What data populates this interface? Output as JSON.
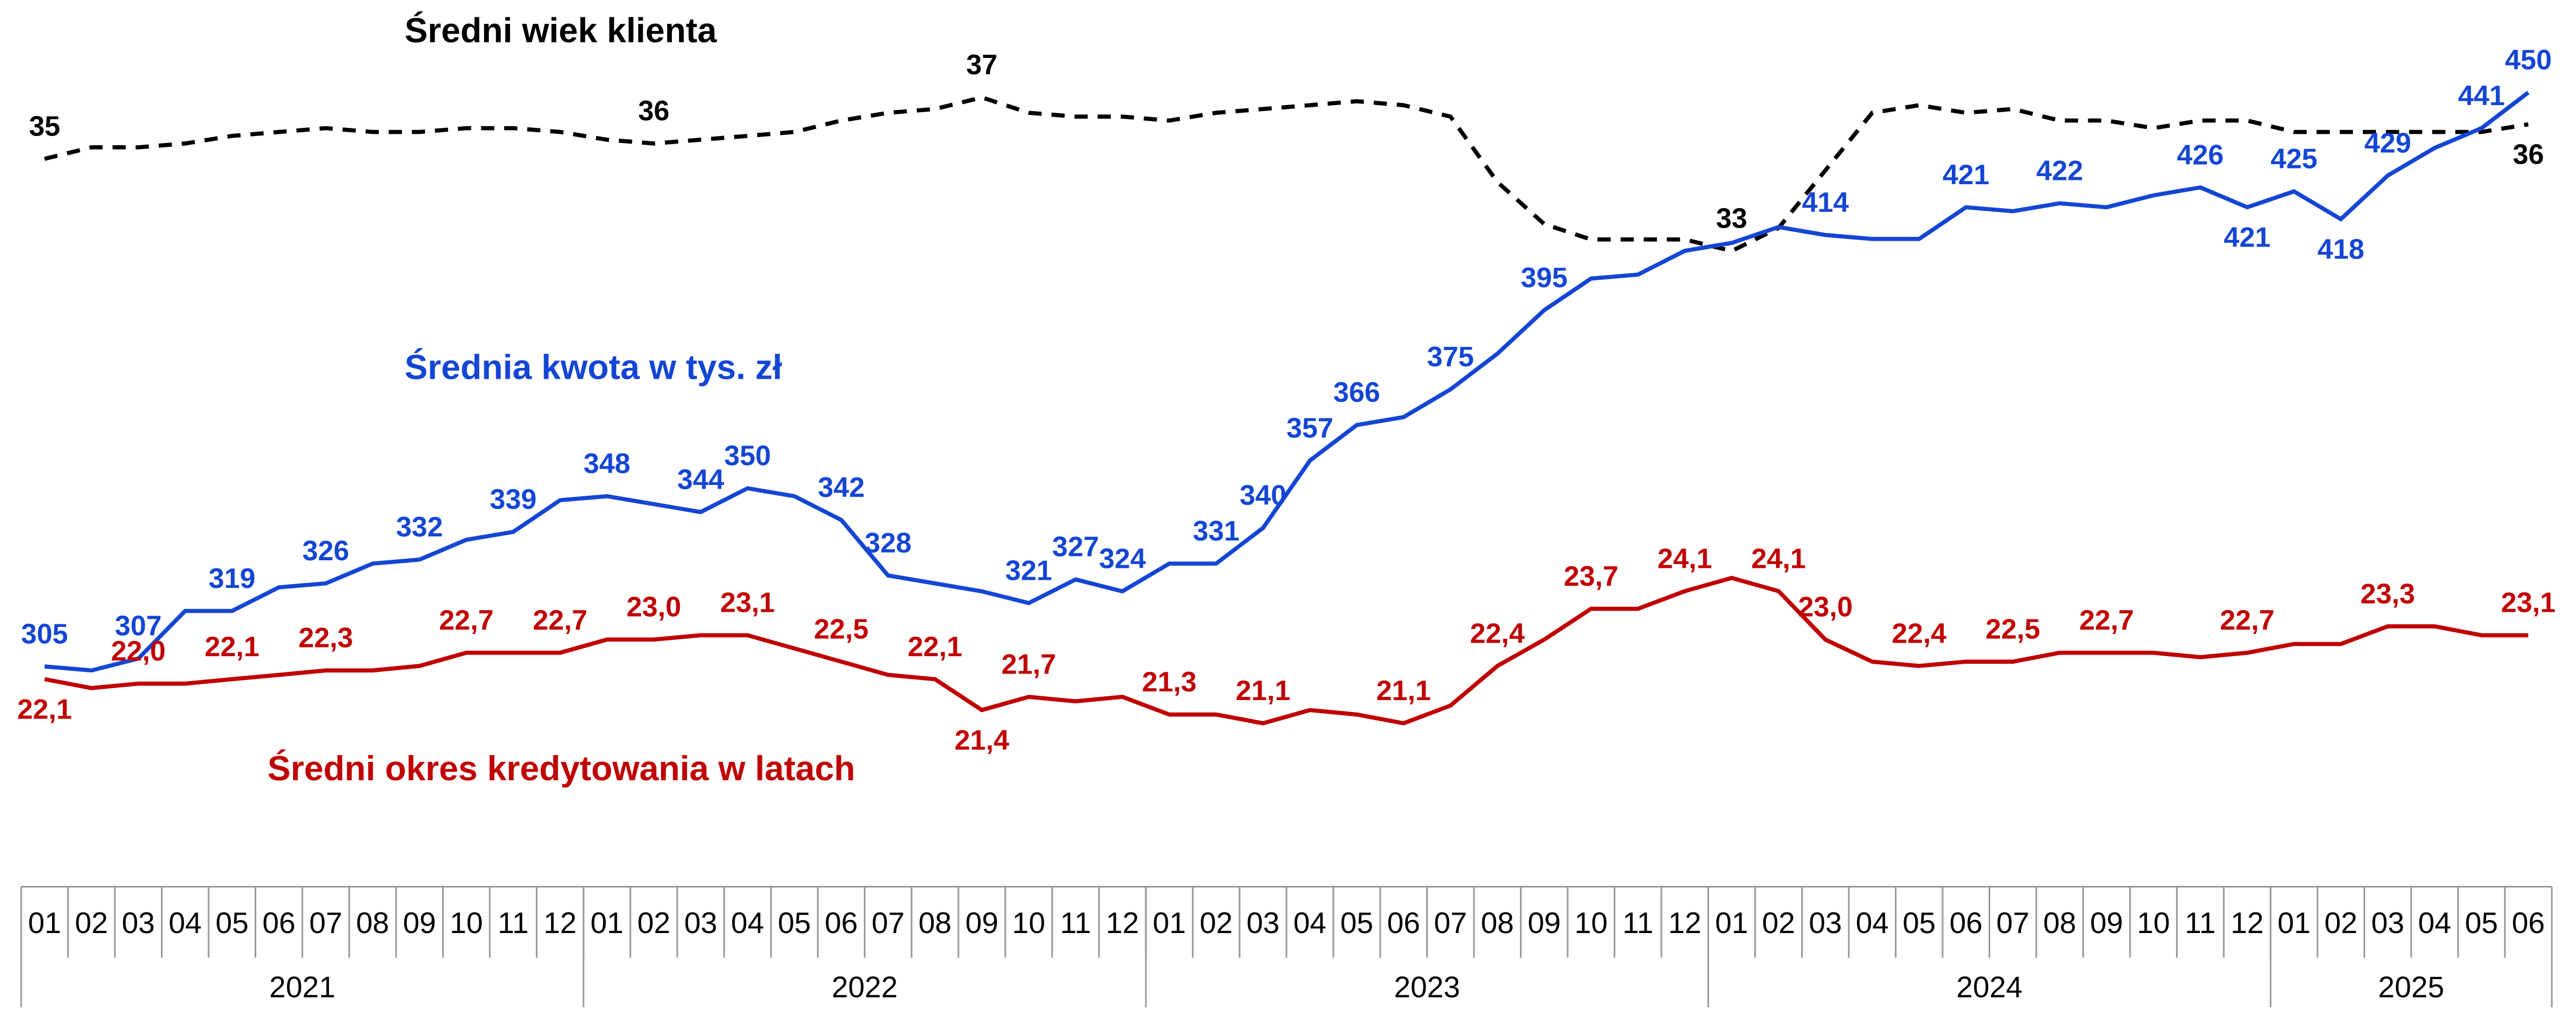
{
  "chart_data": {
    "type": "line",
    "categories": [
      "01",
      "02",
      "03",
      "04",
      "05",
      "06",
      "07",
      "08",
      "09",
      "10",
      "11",
      "12",
      "01",
      "02",
      "03",
      "04",
      "05",
      "06",
      "07",
      "08",
      "09",
      "10",
      "11",
      "12",
      "01",
      "02",
      "03",
      "04",
      "05",
      "06",
      "07",
      "08",
      "09",
      "10",
      "11",
      "12",
      "01",
      "02",
      "03",
      "04",
      "05",
      "06",
      "07",
      "08",
      "09",
      "10",
      "11",
      "12",
      "01",
      "02",
      "03",
      "04",
      "05",
      "06"
    ],
    "years": [
      "2021",
      "2022",
      "2023",
      "2024",
      "2025"
    ],
    "series": [
      {
        "name": "Średni wiek klienta",
        "color": "#000000",
        "dash": true,
        "values": [
          35.4,
          35.7,
          35.7,
          35.8,
          36.0,
          36.1,
          36.2,
          36.1,
          36.1,
          36.2,
          36.2,
          36.1,
          35.9,
          35.8,
          35.9,
          36.0,
          36.1,
          36.4,
          36.6,
          36.7,
          37.0,
          36.6,
          36.5,
          36.5,
          36.4,
          36.6,
          36.7,
          36.8,
          36.9,
          36.8,
          36.5,
          34.8,
          33.7,
          33.3,
          33.3,
          33.3,
          33.0,
          33.6,
          35.1,
          36.6,
          36.8,
          36.6,
          36.7,
          36.4,
          36.4,
          36.2,
          36.4,
          36.4,
          36.1,
          36.1,
          36.1,
          36.1,
          36.1,
          36.3
        ],
        "value_labels": [
          "35",
          null,
          null,
          null,
          null,
          null,
          null,
          null,
          null,
          null,
          null,
          null,
          null,
          "36",
          null,
          null,
          null,
          null,
          null,
          null,
          "37",
          null,
          null,
          null,
          null,
          null,
          null,
          null,
          null,
          null,
          null,
          null,
          null,
          null,
          null,
          null,
          "33",
          null,
          null,
          null,
          null,
          null,
          null,
          null,
          null,
          null,
          null,
          null,
          null,
          null,
          null,
          null,
          null,
          "36"
        ]
      },
      {
        "name": "Średnia kwota w tys. zł",
        "color": "#1446d4",
        "dash": false,
        "values": [
          305,
          304,
          307,
          319,
          319,
          325,
          326,
          331,
          332,
          337,
          339,
          347,
          348,
          346,
          344,
          350,
          348,
          342,
          328,
          326,
          324,
          321,
          327,
          324,
          331,
          331,
          340,
          357,
          366,
          368,
          375,
          384,
          395,
          403,
          404,
          410,
          412,
          416,
          414,
          413,
          413,
          421,
          420,
          422,
          421,
          424,
          426,
          421,
          425,
          418,
          429,
          436,
          441,
          450
        ],
        "value_labels": [
          "305",
          null,
          "307",
          null,
          "319",
          null,
          "326",
          null,
          "332",
          null,
          "339",
          null,
          "348",
          null,
          "344",
          "350",
          null,
          "342",
          "328",
          null,
          null,
          "321",
          "327",
          "324",
          null,
          "331",
          "340",
          "357",
          "366",
          null,
          "375",
          null,
          "395",
          null,
          null,
          null,
          null,
          null,
          "414",
          null,
          null,
          "421",
          null,
          "422",
          null,
          null,
          "426",
          "421",
          "425",
          "418",
          "429",
          null,
          "441",
          "450"
        ]
      },
      {
        "name": "Średni okres kredytowania w latach",
        "color": "#c00000",
        "dash": false,
        "values": [
          22.1,
          21.9,
          22.0,
          22.0,
          22.1,
          22.2,
          22.3,
          22.3,
          22.4,
          22.7,
          22.7,
          22.7,
          23.0,
          23.0,
          23.1,
          23.1,
          22.8,
          22.5,
          22.2,
          22.1,
          21.4,
          21.7,
          21.6,
          21.7,
          21.3,
          21.3,
          21.1,
          21.4,
          21.3,
          21.1,
          21.5,
          22.4,
          23.0,
          23.7,
          23.7,
          24.1,
          24.4,
          24.1,
          23.0,
          22.5,
          22.4,
          22.5,
          22.5,
          22.7,
          22.7,
          22.7,
          22.6,
          22.7,
          22.9,
          22.9,
          23.3,
          23.3,
          23.1,
          23.1
        ],
        "value_labels": [
          "22,1",
          null,
          "22,0",
          null,
          "22,1",
          null,
          "22,3",
          null,
          null,
          "22,7",
          null,
          "22,7",
          null,
          "23,0",
          null,
          "23,1",
          null,
          "22,5",
          null,
          "22,1",
          "21,4",
          "21,7",
          null,
          null,
          "21,3",
          null,
          "21,1",
          null,
          null,
          "21,1",
          null,
          "22,4",
          null,
          "23,7",
          null,
          "24,1",
          null,
          "24,1",
          "23,0",
          null,
          "22,4",
          null,
          "22,5",
          null,
          "22,7",
          null,
          null,
          "22,7",
          null,
          null,
          "23,3",
          null,
          null,
          "23,1"
        ]
      }
    ]
  }
}
